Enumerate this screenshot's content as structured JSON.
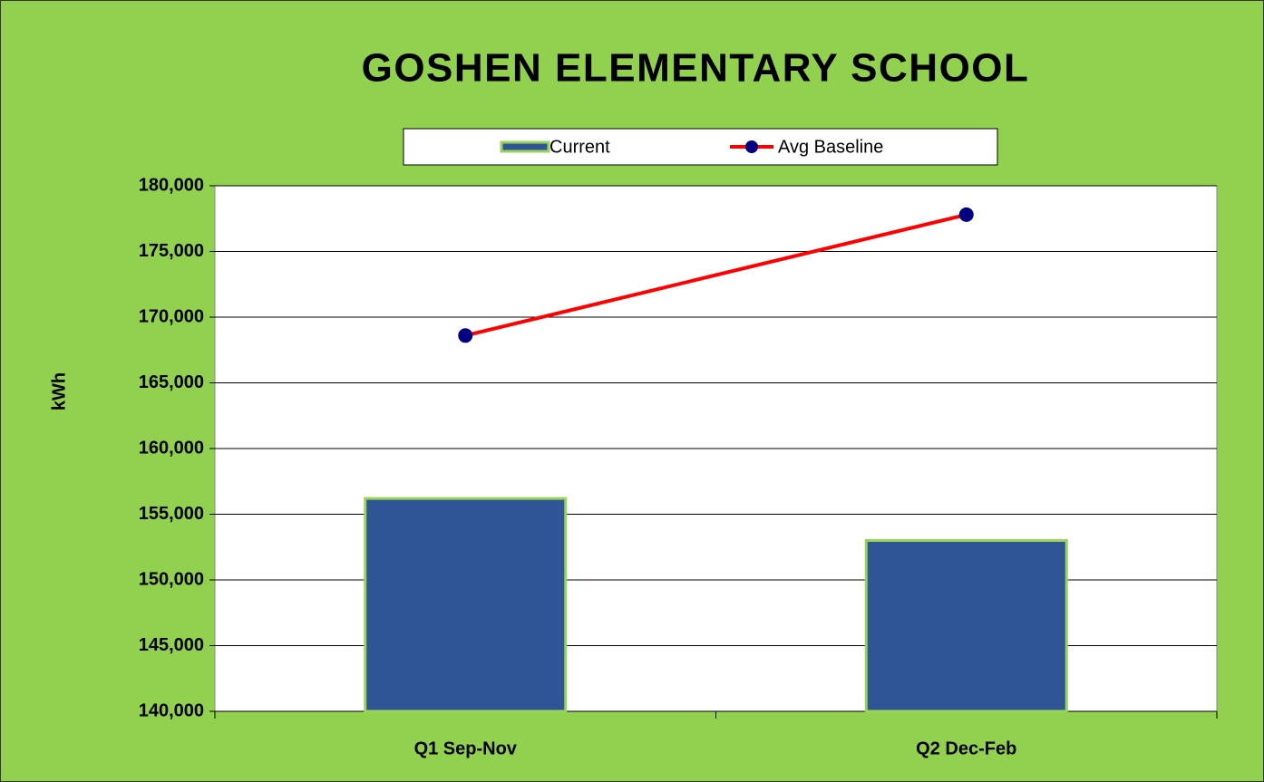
{
  "chart_data": {
    "type": "bar",
    "title": "GOSHEN ELEMENTARY SCHOOL",
    "y_label": "kWh",
    "categories": [
      "Q1 Sep-Nov",
      "Q2 Dec-Feb"
    ],
    "series": [
      {
        "name": "Current",
        "type": "bar",
        "color": "#2f5597",
        "values": [
          156200,
          153000
        ]
      },
      {
        "name": "Avg Baseline",
        "type": "line",
        "color": "#ff0000",
        "marker_color": "#000080",
        "values": [
          168600,
          177800
        ]
      }
    ],
    "ylim": [
      140000,
      180000
    ],
    "yticks": [
      {
        "value": 140000,
        "label": "140,000"
      },
      {
        "value": 145000,
        "label": "145,000"
      },
      {
        "value": 150000,
        "label": "150,000"
      },
      {
        "value": 155000,
        "label": "155,000"
      },
      {
        "value": 160000,
        "label": "160,000"
      },
      {
        "value": 165000,
        "label": "165,000"
      },
      {
        "value": 170000,
        "label": "170,000"
      },
      {
        "value": 175000,
        "label": "175,000"
      },
      {
        "value": 180000,
        "label": "180,000"
      }
    ],
    "grid": true,
    "legend": "top"
  }
}
